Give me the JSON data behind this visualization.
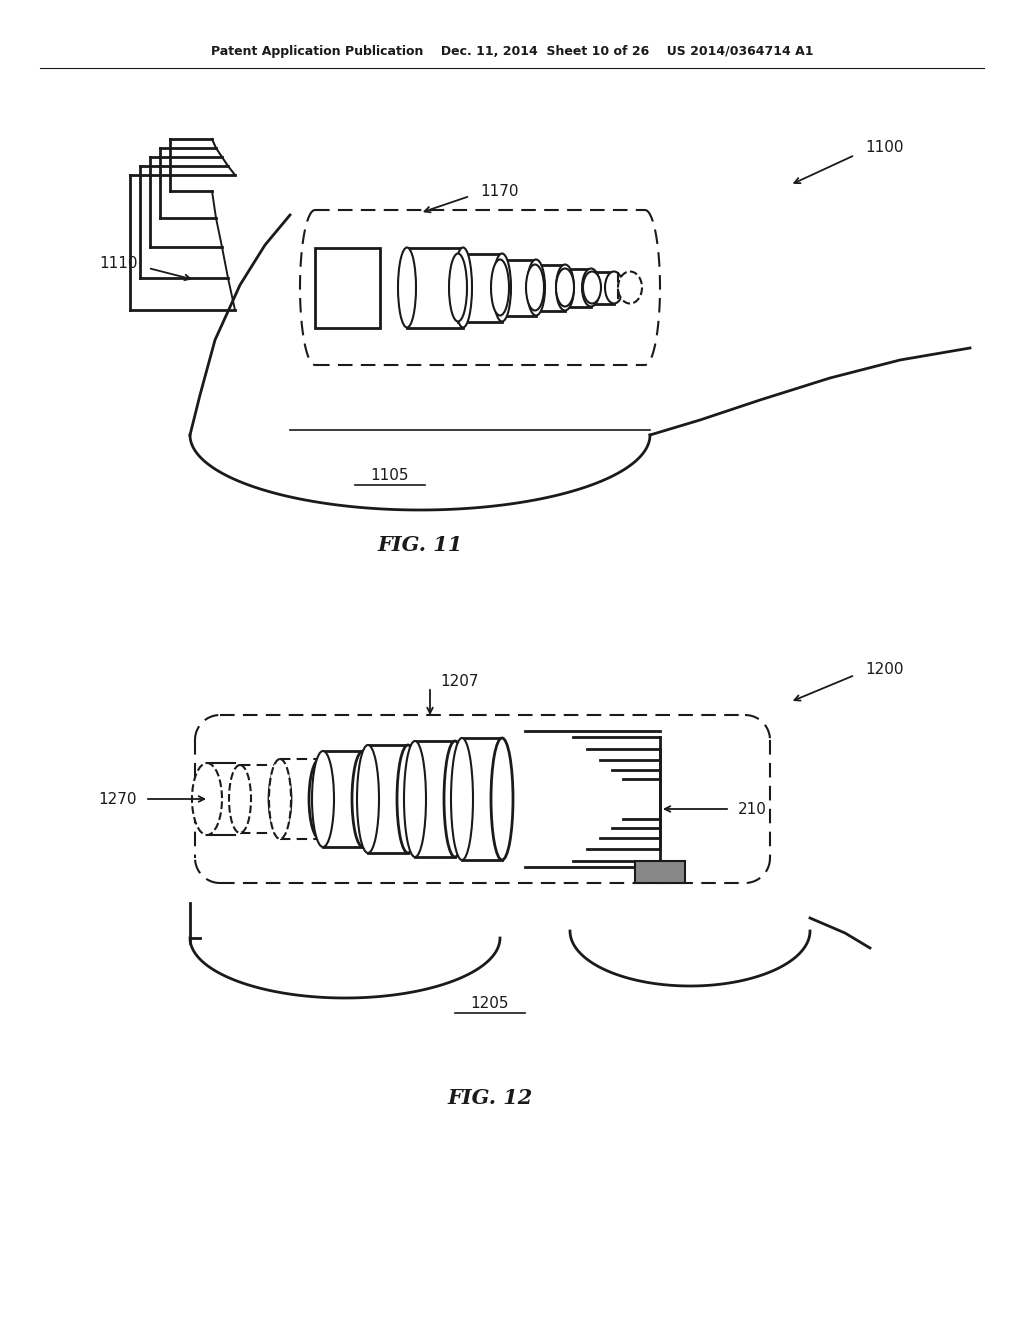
{
  "bg_color": "#ffffff",
  "line_color": "#1a1a1a",
  "dash_color": "#1a1a1a",
  "header": "Patent Application Publication    Dec. 11, 2014  Sheet 10 of 26    US 2014/0364714 A1",
  "fig11_caption": "FIG. 11",
  "fig12_caption": "FIG. 12"
}
